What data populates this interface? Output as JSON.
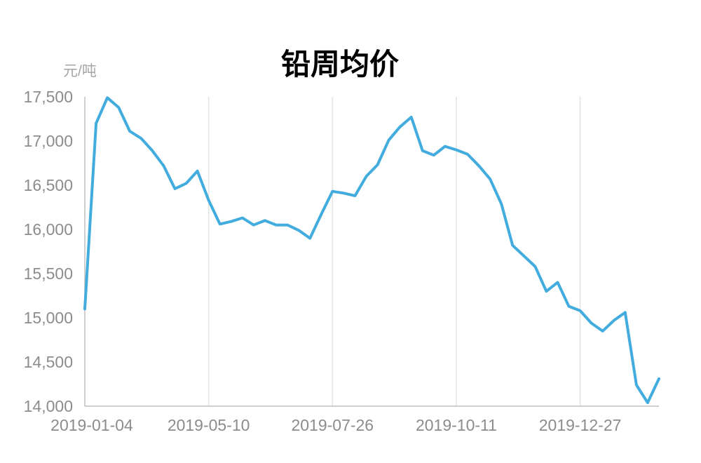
{
  "chart_data": {
    "type": "line",
    "title": "铅周均价",
    "ylabel": "元/吨",
    "ylim": [
      14000,
      17500
    ],
    "yticks": [
      14000,
      14500,
      15000,
      15500,
      16000,
      16500,
      17000,
      17500
    ],
    "ytick_labels": [
      "14,000",
      "14,500",
      "15,000",
      "15,500",
      "16,000",
      "16,500",
      "17,000",
      "17,500"
    ],
    "xtick_labels": [
      "2019-01-04",
      "2019-05-10",
      "2019-07-26",
      "2019-10-11",
      "2019-12-27"
    ],
    "xtick_indices": [
      0,
      11,
      22,
      33,
      44
    ],
    "grid": "vertical",
    "color": "#41acdd",
    "series": [
      {
        "values": [
          15100,
          17200,
          17490,
          17380,
          17110,
          17030,
          16890,
          16720,
          16460,
          16520,
          16660,
          16330,
          16060,
          16090,
          16130,
          16050,
          16100,
          16050,
          16050,
          15990,
          15900,
          16170,
          16430,
          16410,
          16380,
          16600,
          16730,
          17010,
          17160,
          17270,
          16890,
          16840,
          16940,
          16900,
          16850,
          16720,
          16570,
          16290,
          15820,
          15700,
          15580,
          15300,
          15400,
          15130,
          15080,
          14940,
          14850,
          14970,
          15060,
          14240,
          14040,
          14310
        ]
      }
    ]
  }
}
